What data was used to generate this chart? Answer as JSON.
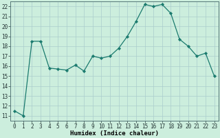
{
  "x": [
    0,
    1,
    2,
    3,
    4,
    5,
    6,
    7,
    8,
    9,
    10,
    11,
    12,
    13,
    14,
    15,
    16,
    17,
    18,
    19,
    20,
    21,
    22,
    23
  ],
  "y": [
    11.5,
    11.0,
    18.5,
    18.5,
    15.8,
    15.7,
    15.6,
    16.1,
    15.5,
    17.0,
    16.8,
    17.0,
    17.8,
    19.0,
    20.5,
    22.2,
    22.0,
    22.2,
    21.3,
    18.7,
    18.0,
    17.0,
    17.3,
    15.0
  ],
  "line_color": "#1a7a6e",
  "marker_color": "#1a7a6e",
  "bg_color": "#cceedd",
  "grid_color": "#aacccc",
  "xlabel": "Humidex (Indice chaleur)",
  "ylabel_ticks": [
    11,
    12,
    13,
    14,
    15,
    16,
    17,
    18,
    19,
    20,
    21,
    22
  ],
  "xlim": [
    -0.5,
    23.5
  ],
  "ylim": [
    10.5,
    22.5
  ],
  "tick_fontsize": 5.5,
  "label_fontsize": 6.5
}
